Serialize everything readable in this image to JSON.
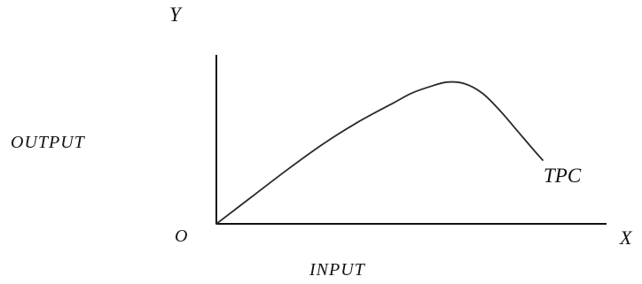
{
  "chart_data": {
    "type": "line",
    "title": "",
    "axis_labels": {
      "y_letter": "Y",
      "x_letter": "X",
      "origin": "O",
      "ylabel": "OUTPUT",
      "xlabel": "INPUT"
    },
    "series": [
      {
        "name": "TPC",
        "x": [
          0,
          0.1,
          0.2,
          0.3,
          0.4,
          0.5,
          0.55,
          0.6,
          0.65,
          0.7,
          0.75,
          0.8,
          0.85,
          0.9,
          0.92
        ],
        "y": [
          0,
          0.17,
          0.34,
          0.5,
          0.64,
          0.76,
          0.82,
          0.86,
          0.89,
          0.88,
          0.82,
          0.71,
          0.58,
          0.45,
          0.4
        ]
      }
    ],
    "xlim": [
      0,
      1
    ],
    "ylim": [
      0,
      1
    ],
    "ticks": "none",
    "grid": false,
    "legend": "none",
    "colors": {
      "axis": "#111111",
      "curve": "#2a2a2a"
    }
  }
}
